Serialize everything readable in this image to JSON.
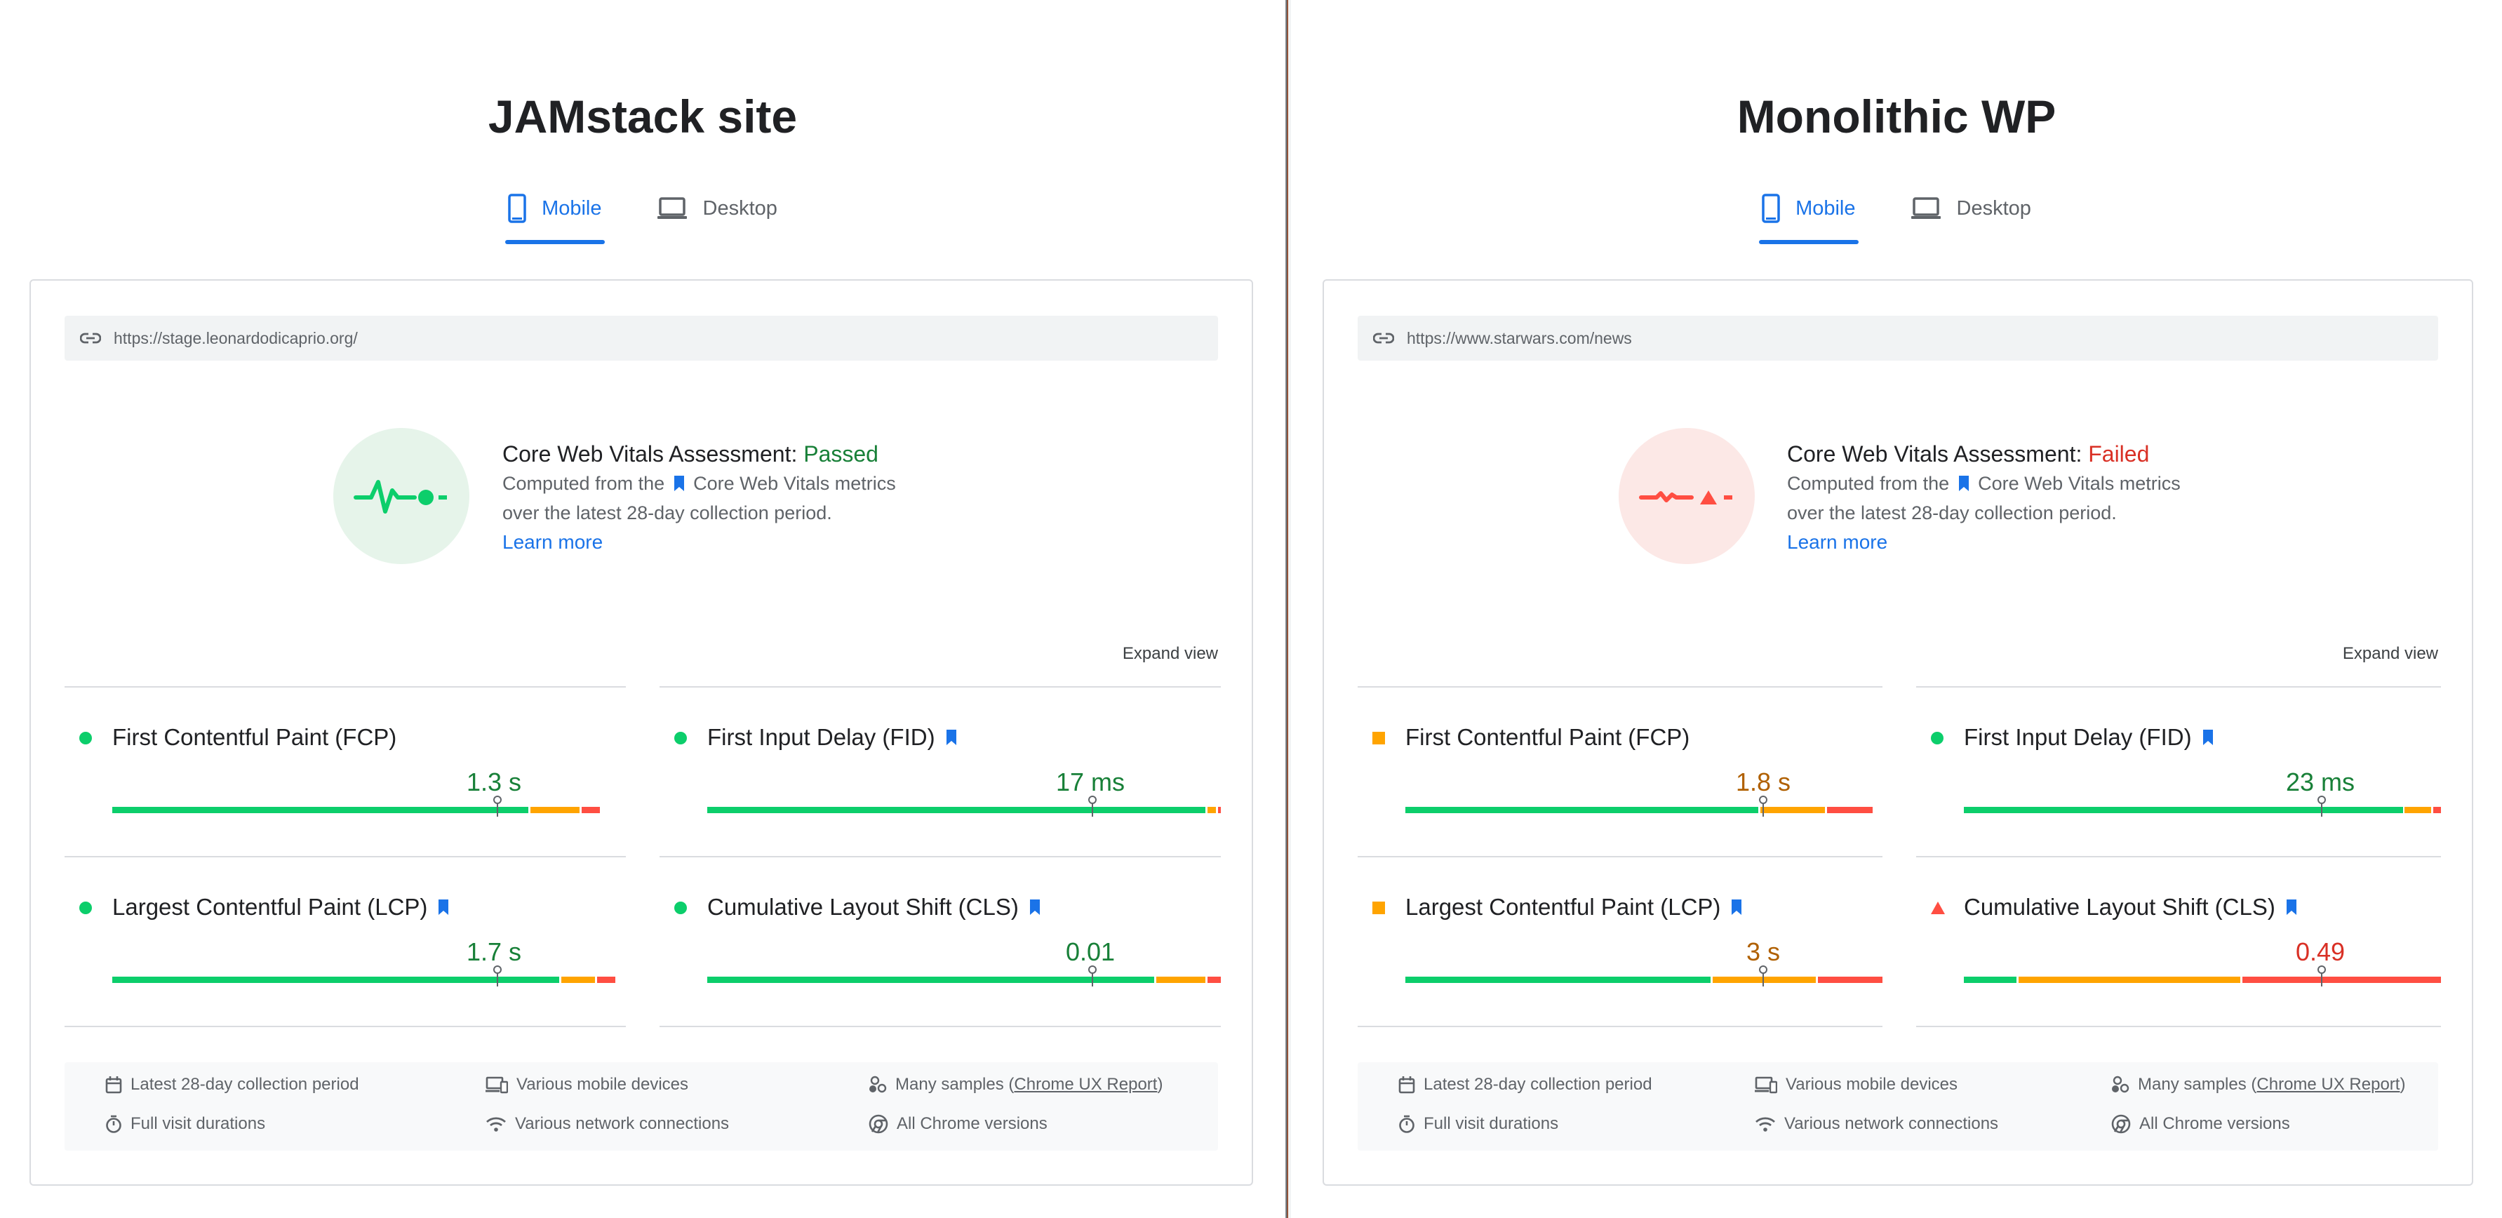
{
  "panels": [
    {
      "title": "JAMstack site",
      "tabs": {
        "mobile": "Mobile",
        "desktop": "Desktop"
      },
      "url": "https://stage.leonardodicaprio.org/",
      "assessment": {
        "label": "Core Web Vitals Assessment: ",
        "status": "Passed",
        "desc_before": "Computed from the ",
        "desc_after": "Core Web Vitals metrics",
        "desc_line2": "over the latest 28-day collection period.",
        "learn_more": "Learn more"
      },
      "expand_view": "Expand view",
      "metrics": [
        {
          "name": "First Contentful Paint (FCP)",
          "value": "1.3 s",
          "rating": "good",
          "distribution": {
            "good": 0.81,
            "needs_improvement": 0.1,
            "poor": 0.04
          },
          "marker": 0.75
        },
        {
          "name": "First Input Delay (FID)",
          "value": "17 ms",
          "rating": "good",
          "distribution": {
            "good": 0.97,
            "needs_improvement": 0.02,
            "poor": 0.01
          },
          "marker": 0.75
        },
        {
          "name": "Largest Contentful Paint (LCP)",
          "value": "1.7 s",
          "rating": "good",
          "distribution": {
            "good": 0.87,
            "needs_improvement": 0.07,
            "poor": 0.04
          },
          "marker": 0.75
        },
        {
          "name": "Cumulative Layout Shift (CLS)",
          "value": "0.01",
          "rating": "good",
          "distribution": {
            "good": 0.87,
            "needs_improvement": 0.1,
            "poor": 0.03
          },
          "marker": 0.75
        }
      ],
      "footer": {
        "collection_period": "Latest 28-day collection period",
        "devices": "Various mobile devices",
        "samples_prefix": "Many samples (",
        "samples_link": "Chrome UX Report",
        "samples_suffix": ")",
        "visit_durations": "Full visit durations",
        "network": "Various network connections",
        "chrome_versions": "All Chrome versions"
      }
    },
    {
      "title": "Monolithic WP",
      "tabs": {
        "mobile": "Mobile",
        "desktop": "Desktop"
      },
      "url": "https://www.starwars.com/news",
      "assessment": {
        "label": "Core Web Vitals Assessment: ",
        "status": "Failed",
        "desc_before": "Computed from the ",
        "desc_after": "Core Web Vitals metrics",
        "desc_line2": "over the latest 28-day collection period.",
        "learn_more": "Learn more"
      },
      "expand_view": "Expand view",
      "metrics": [
        {
          "name": "First Contentful Paint (FCP)",
          "value": "1.8 s",
          "rating": "ni",
          "distribution": {
            "good": 0.74,
            "needs_improvement": 0.14,
            "poor": 0.1
          },
          "marker": 0.75
        },
        {
          "name": "First Input Delay (FID)",
          "value": "23 ms",
          "rating": "good",
          "distribution": {
            "good": 0.92,
            "needs_improvement": 0.06,
            "poor": 0.02
          },
          "marker": 0.75
        },
        {
          "name": "Largest Contentful Paint (LCP)",
          "value": "3 s",
          "rating": "ni",
          "distribution": {
            "good": 0.64,
            "needs_improvement": 0.22,
            "poor": 0.14
          },
          "marker": 0.75
        },
        {
          "name": "Cumulative Layout Shift (CLS)",
          "value": "0.49",
          "rating": "poor",
          "distribution": {
            "good": 0.11,
            "needs_improvement": 0.47,
            "poor": 0.42
          },
          "marker": 0.75
        }
      ],
      "footer": {
        "collection_period": "Latest 28-day collection period",
        "devices": "Various mobile devices",
        "samples_prefix": "Many samples (",
        "samples_link": "Chrome UX Report",
        "samples_suffix": ")",
        "visit_durations": "Full visit durations",
        "network": "Various network connections",
        "chrome_versions": "All Chrome versions"
      }
    }
  ],
  "colors": {
    "good": "#0cce6b",
    "needs_improvement": "#ffa400",
    "poor": "#ff4e42",
    "accent": "#1a73e8"
  },
  "icons": [
    "link-icon",
    "mobile-icon",
    "desktop-icon",
    "bookmark-icon",
    "calendar-icon",
    "devices-icon",
    "samples-icon",
    "timer-icon",
    "wifi-icon",
    "chrome-icon",
    "vitals-pass-icon",
    "vitals-fail-icon",
    "marker-pin-icon"
  ]
}
